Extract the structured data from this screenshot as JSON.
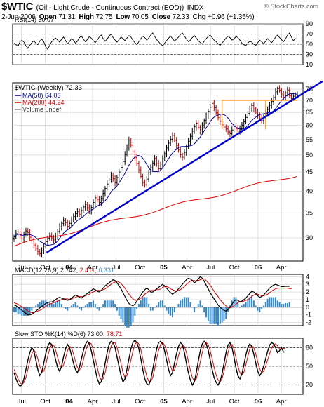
{
  "header": {
    "symbol": "$WTIC",
    "description": "(Oil - Light Crude - Continuous Contract (EOD))",
    "exchange": "INDX",
    "watermark": "© StockCharts.com",
    "quote": {
      "date": "2-Jun-2006",
      "open_label": "Open",
      "open": "71.31",
      "high_label": "High",
      "high": "72.75",
      "low_label": "Low",
      "low": "70.05",
      "close_label": "Close",
      "close": "72.33",
      "chg_label": "Chg",
      "chg": "+0.96 (+1.35%)"
    }
  },
  "colors": {
    "price_up": "#000000",
    "price_down": "#cc0000",
    "ma50": "#000099",
    "ma200": "#dd0000",
    "trendline": "#0000cc",
    "resistance": "#ff9900",
    "macd_line": "#000000",
    "signal_line": "#dd0000",
    "histogram": "#3388cc",
    "sto_k": "#000000",
    "sto_d": "#dd0000",
    "grid": "#cccccc",
    "panel_border": "#000000"
  },
  "x_axis": {
    "labels": [
      "Jul",
      "Oct",
      "04",
      "Apr",
      "Jul",
      "Oct",
      "05",
      "Apr",
      "Jul",
      "Oct",
      "06",
      "Apr"
    ],
    "bold": [
      false,
      false,
      true,
      false,
      false,
      false,
      true,
      false,
      false,
      false,
      true,
      false
    ],
    "start_week": "2003-06-02",
    "end_week": "2006-06-02"
  },
  "chart_data": [
    {
      "type": "line",
      "id": "rsi",
      "label": "RSI(14) 60.07",
      "y_ticks": [
        90,
        70,
        50,
        30,
        10
      ],
      "ylim": [
        10,
        90
      ],
      "reference_lines": [
        70,
        50,
        30
      ],
      "series": [
        {
          "values": [
            52,
            49,
            46,
            55,
            58,
            54,
            47,
            42,
            48,
            53,
            57,
            52,
            49,
            56,
            60,
            55,
            45,
            40,
            48,
            55,
            59,
            62,
            58,
            54,
            60,
            64,
            57,
            51,
            55,
            61,
            58,
            52,
            56,
            63,
            66,
            60,
            55,
            59,
            65,
            62,
            57,
            53,
            58,
            64,
            68,
            61,
            56,
            60,
            66,
            70,
            63,
            58,
            54,
            59,
            64,
            61,
            57,
            62,
            67,
            64,
            58,
            53,
            49,
            55,
            61,
            66,
            63,
            58,
            62,
            68,
            72,
            65,
            59,
            55,
            50,
            47,
            52,
            57,
            62,
            66,
            61,
            56,
            60,
            64,
            69,
            72,
            66,
            60,
            55,
            58,
            63,
            67,
            62,
            57,
            53,
            50,
            56,
            61,
            65,
            68,
            63,
            58,
            55,
            51,
            48,
            52,
            57,
            62,
            66,
            63,
            58,
            60,
            65,
            63,
            58,
            52,
            49,
            47,
            52,
            56,
            54,
            50,
            48,
            53,
            58,
            55,
            51,
            56,
            61,
            57,
            53,
            58,
            64,
            68,
            63,
            59,
            55,
            60,
            68,
            72,
            64,
            57,
            61,
            60
          ]
        }
      ]
    },
    {
      "type": "ohlc",
      "id": "price",
      "title": "$WTIC (Weekly) 72.33",
      "y_scale": "log",
      "y_ticks": [
        75,
        70,
        65,
        60,
        55,
        50,
        45,
        40,
        35,
        30
      ],
      "ylim": [
        26,
        78
      ],
      "overlay_labels": [
        "MA(50) 64.03",
        "MA(200) 44.24",
        "Volume undef"
      ],
      "trendline": {
        "from": [
          "2003-10-06",
          27.4
        ],
        "to": [
          "2006-06-02",
          71.5
        ]
      },
      "resistance": {
        "y": 70.0,
        "from": "2005-08-15",
        "to": "2006-06-02",
        "drops": [
          "2005-08-15",
          "2006-01-30"
        ]
      },
      "closes": [
        30.2,
        30.8,
        31.1,
        30.5,
        29.8,
        30.6,
        31.3,
        31.0,
        30.1,
        29.4,
        28.7,
        28.1,
        27.6,
        27.2,
        27.7,
        28.5,
        29.3,
        29.9,
        30.4,
        30.0,
        29.6,
        30.3,
        31.2,
        32.1,
        32.8,
        33.4,
        32.9,
        32.2,
        32.8,
        33.5,
        34.2,
        34.8,
        35.3,
        34.7,
        35.5,
        36.3,
        36.9,
        36.1,
        35.4,
        36.2,
        37.3,
        38.4,
        38.0,
        37.3,
        38.2,
        39.5,
        40.7,
        41.8,
        42.9,
        44.1,
        43.2,
        42.1,
        43.5,
        45.0,
        46.3,
        48.0,
        50.2,
        52.5,
        54.8,
        53.1,
        51.0,
        49.2,
        47.5,
        45.6,
        43.8,
        42.2,
        41.6,
        43.1,
        44.8,
        46.2,
        47.6,
        48.9,
        47.4,
        45.9,
        47.3,
        48.8,
        50.4,
        52.2,
        53.8,
        55.1,
        56.4,
        54.7,
        53.0,
        51.6,
        50.1,
        49.3,
        50.8,
        52.6,
        54.4,
        56.1,
        57.9,
        59.5,
        60.8,
        59.2,
        58.0,
        59.9,
        61.8,
        63.5,
        65.4,
        67.1,
        68.7,
        66.9,
        64.8,
        62.9,
        61.5,
        60.2,
        59.4,
        58.7,
        57.6,
        57.0,
        58.3,
        59.6,
        58.7,
        57.9,
        58.8,
        60.1,
        61.4,
        63.0,
        64.6,
        66.3,
        67.8,
        66.4,
        65.1,
        64.0,
        62.6,
        61.8,
        63.1,
        64.7,
        66.2,
        67.9,
        69.6,
        71.3,
        73.8,
        75.2,
        74.5,
        72.8,
        71.4,
        73.3,
        74.6,
        72.0,
        70.9,
        71.8,
        72.3,
        72.33
      ]
    },
    {
      "type": "line",
      "id": "macd",
      "label": "MACD(12,26,9) 2.742, 2.411, 0.331",
      "label_parts": [
        "MACD(12,26,9) ",
        "2.742",
        ", ",
        "2.411",
        ", ",
        "0.331"
      ],
      "y_ticks": [
        4,
        3,
        2,
        1,
        0,
        -1,
        -2
      ],
      "ylim": [
        -2.4,
        4.3
      ],
      "series": [
        {
          "values": [
            0.3,
            0.2,
            0.0,
            -0.2,
            -0.4,
            -0.6,
            -0.8,
            -1.0,
            -1.0,
            -0.9,
            -0.7,
            -0.5,
            -0.3,
            -0.1,
            0.1,
            0.3,
            0.5,
            0.6,
            0.7,
            0.7,
            0.8,
            1.0,
            1.2,
            1.3,
            1.2,
            1.1,
            1.0,
            0.9,
            1.0,
            1.2,
            1.4,
            1.6,
            1.5,
            1.3,
            1.2,
            1.4,
            1.6,
            1.8,
            2.0,
            2.2,
            2.4,
            2.3,
            2.1,
            2.0,
            2.2,
            2.5,
            2.8,
            3.0,
            3.2,
            3.4,
            3.6,
            3.5,
            3.2,
            2.8,
            2.4,
            1.9,
            1.4,
            0.9,
            0.5,
            0.3,
            0.2,
            0.4,
            0.8,
            1.2,
            1.6,
            2.0,
            2.3,
            2.5,
            2.3,
            2.0,
            2.0,
            2.2,
            2.4,
            2.6,
            2.8,
            3.0,
            2.8,
            2.5,
            2.2,
            1.9,
            1.7,
            1.9,
            2.1,
            2.4,
            2.7,
            3.0,
            3.3,
            3.6,
            3.8,
            3.7,
            3.5,
            3.2,
            3.4,
            3.7,
            4.0,
            3.8,
            3.4,
            2.9,
            2.4,
            1.9,
            1.5,
            1.1,
            0.7,
            0.3,
            0.0,
            -0.2,
            -0.4,
            -0.5,
            -0.3,
            0.0,
            0.4,
            0.8,
            1.0,
            0.9,
            0.7,
            0.8,
            1.0,
            1.2,
            1.5,
            1.8,
            2.1,
            2.0,
            1.8,
            1.5,
            1.3,
            1.4,
            1.6,
            1.9,
            2.2,
            2.5,
            2.7,
            2.9,
            3.0,
            2.9,
            2.8,
            2.7,
            2.7,
            2.75,
            2.74,
            2.742
          ]
        },
        {
          "values": [
            0.6,
            0.5,
            0.4,
            0.2,
            0.1,
            -0.1,
            -0.3,
            -0.5,
            -0.6,
            -0.7,
            -0.7,
            -0.6,
            -0.5,
            -0.4,
            -0.3,
            -0.1,
            0.1,
            0.3,
            0.4,
            0.5,
            0.6,
            0.7,
            0.8,
            0.9,
            1.0,
            1.1,
            1.1,
            1.1,
            1.0,
            1.1,
            1.2,
            1.3,
            1.4,
            1.4,
            1.4,
            1.4,
            1.5,
            1.6,
            1.7,
            1.9,
            2.0,
            2.1,
            2.2,
            2.2,
            2.2,
            2.3,
            2.4,
            2.6,
            2.8,
            3.0,
            3.2,
            3.3,
            3.4,
            3.3,
            3.1,
            2.8,
            2.5,
            2.1,
            1.7,
            1.4,
            1.1,
            0.9,
            0.9,
            1.0,
            1.2,
            1.4,
            1.7,
            1.9,
            2.1,
            2.2,
            2.2,
            2.2,
            2.3,
            2.3,
            2.4,
            2.6,
            2.7,
            2.7,
            2.6,
            2.4,
            2.3,
            2.2,
            2.1,
            2.2,
            2.3,
            2.5,
            2.7,
            3.0,
            3.2,
            3.4,
            3.5,
            3.5,
            3.4,
            3.5,
            3.6,
            3.7,
            3.7,
            3.5,
            3.2,
            2.9,
            2.5,
            2.1,
            1.7,
            1.4,
            1.0,
            0.7,
            0.4,
            0.2,
            0.0,
            -0.1,
            0.0,
            0.2,
            0.4,
            0.6,
            0.7,
            0.7,
            0.8,
            0.9,
            1.0,
            1.2,
            1.4,
            1.6,
            1.7,
            1.7,
            1.6,
            1.5,
            1.5,
            1.6,
            1.7,
            1.9,
            2.1,
            2.3,
            2.4,
            2.5,
            2.5,
            2.5,
            2.5,
            2.5,
            2.5,
            2.45,
            2.411
          ]
        }
      ]
    },
    {
      "type": "line",
      "id": "sto",
      "label": "Slow STO %K(14) %D(6) 73.00, 78.71",
      "label_parts": [
        "Slow STO %K(14) %D(6) ",
        "73.00",
        ", ",
        "78.71"
      ],
      "y_ticks": [
        80,
        50,
        20
      ],
      "ylim": [
        5,
        95
      ],
      "reference_lines": [
        80,
        50,
        20
      ],
      "series": [
        {
          "values": [
            40,
            30,
            22,
            18,
            20,
            30,
            45,
            60,
            72,
            80,
            75,
            60,
            45,
            35,
            40,
            55,
            70,
            82,
            88,
            85,
            75,
            60,
            48,
            42,
            50,
            65,
            78,
            85,
            80,
            68,
            55,
            45,
            40,
            48,
            62,
            75,
            85,
            90,
            86,
            75,
            60,
            45,
            30,
            22,
            25,
            38,
            55,
            72,
            85,
            90,
            88,
            80,
            65,
            50,
            35,
            25,
            30,
            45,
            62,
            78,
            88,
            92,
            88,
            78,
            62,
            45,
            30,
            22,
            20,
            28,
            45,
            62,
            78,
            88,
            90,
            86,
            75,
            60,
            45,
            35,
            40,
            55,
            70,
            82,
            88,
            85,
            72,
            55,
            40,
            28,
            20,
            25,
            40,
            58,
            75,
            86,
            90,
            86,
            76,
            60,
            45,
            32,
            24,
            20,
            26,
            38,
            55,
            72,
            84,
            88,
            80,
            65,
            48,
            35,
            30,
            38,
            52,
            68,
            80,
            86,
            82,
            70,
            55,
            42,
            35,
            40,
            50,
            62,
            74,
            84,
            88,
            86,
            80,
            72,
            75,
            80,
            73,
            73
          ]
        },
        {
          "values": [
            45,
            38,
            30,
            24,
            21,
            24,
            32,
            45,
            58,
            70,
            76,
            72,
            62,
            50,
            42,
            42,
            52,
            66,
            78,
            85,
            84,
            76,
            64,
            53,
            48,
            52,
            63,
            75,
            82,
            80,
            70,
            58,
            48,
            44,
            48,
            60,
            73,
            83,
            88,
            86,
            76,
            62,
            48,
            35,
            28,
            30,
            40,
            55,
            70,
            82,
            88,
            88,
            80,
            68,
            54,
            40,
            32,
            35,
            46,
            60,
            74,
            85,
            89,
            86,
            77,
            62,
            47,
            34,
            26,
            25,
            32,
            46,
            62,
            76,
            85,
            88,
            84,
            75,
            62,
            50,
            42,
            44,
            54,
            67,
            78,
            84,
            82,
            72,
            58,
            44,
            32,
            26,
            30,
            42,
            57,
            72,
            84,
            88,
            85,
            75,
            62,
            48,
            36,
            28,
            25,
            30,
            42,
            57,
            72,
            83,
            85,
            78,
            64,
            50,
            40,
            36,
            40,
            52,
            66,
            78,
            83,
            80,
            70,
            57,
            46,
            40,
            42,
            50,
            60,
            70,
            79,
            85,
            86,
            83,
            78,
            77,
            79,
            78.71
          ]
        }
      ]
    }
  ]
}
